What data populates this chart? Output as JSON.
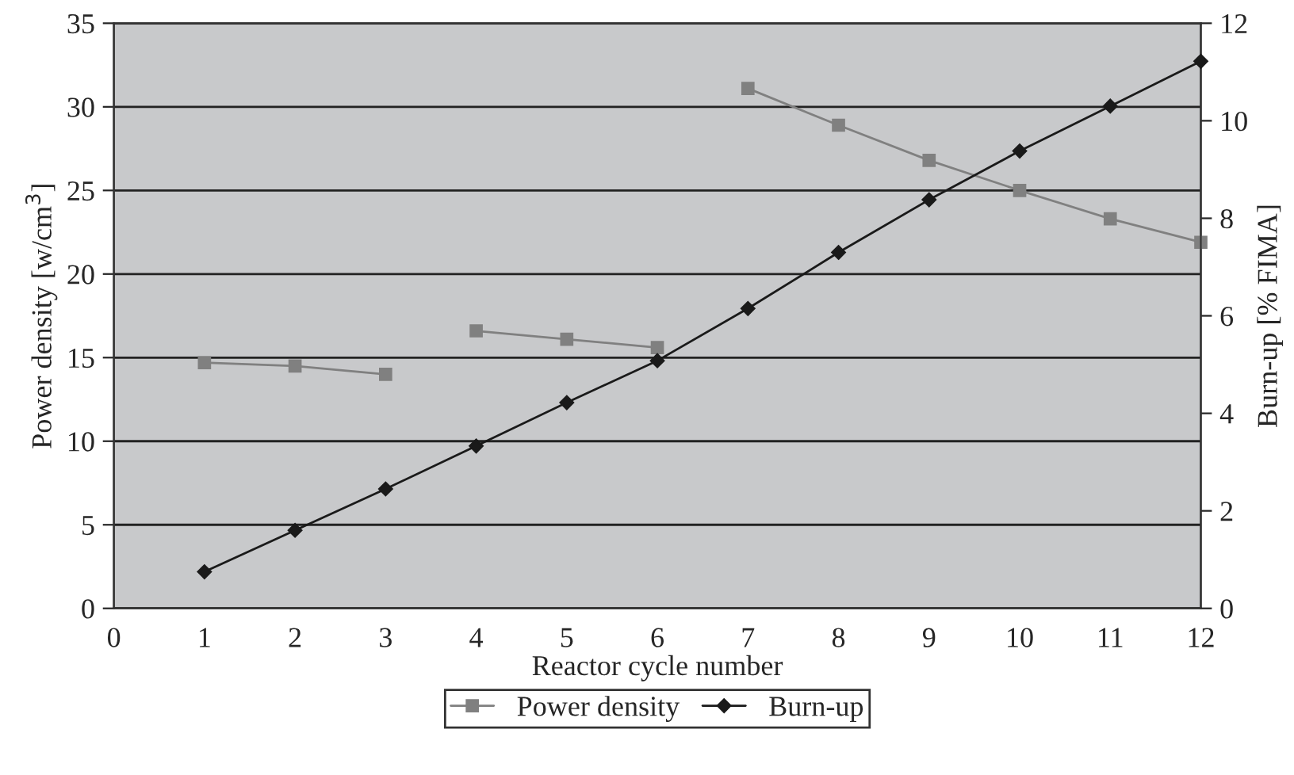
{
  "chart_data": {
    "type": "line",
    "xlabel": "Reactor cycle number",
    "ylabel": "Power density [w/cm$^{3}$]",
    "y2label": "Burn-up [% FIMA]",
    "xlim": [
      0,
      12
    ],
    "xticks": [
      0,
      1,
      2,
      3,
      4,
      5,
      6,
      7,
      8,
      9,
      10,
      11,
      12
    ],
    "ylim": [
      0,
      35
    ],
    "yticks": [
      0,
      5,
      10,
      15,
      20,
      25,
      30,
      35
    ],
    "y2lim": [
      0,
      12
    ],
    "y2ticks": [
      0,
      2,
      4,
      6,
      8,
      10,
      12
    ],
    "grid": "y",
    "legend": "bottom",
    "series": [
      {
        "name": "Power density",
        "color": "#808080",
        "marker": "square",
        "x": [
          1,
          2,
          3
        ],
        "values": [
          14.7,
          14.5,
          14.0
        ]
      },
      {
        "color": "#808080",
        "marker": "square",
        "x": [
          4,
          5,
          6
        ],
        "values": [
          16.6,
          16.1,
          15.6
        ]
      },
      {
        "color": "#808080",
        "marker": "square",
        "x": [
          7,
          8,
          9,
          10,
          11,
          12
        ],
        "values": [
          31.1,
          28.9,
          26.8,
          25.0,
          23.3,
          21.9
        ]
      },
      {
        "name": "Burn-up",
        "color": "#1a1a1a",
        "marker": "diamond",
        "axis": "y2",
        "x": [
          1,
          2,
          3,
          4,
          5,
          6,
          7,
          8,
          9,
          10,
          11,
          12
        ],
        "values": [
          0.75,
          1.6,
          2.45,
          3.33,
          4.22,
          5.08,
          6.15,
          7.3,
          8.38,
          9.38,
          10.3,
          11.22
        ]
      }
    ]
  }
}
